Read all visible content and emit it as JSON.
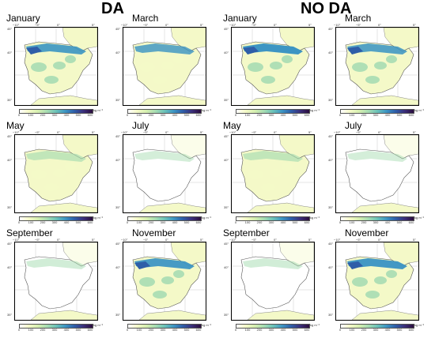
{
  "headers": {
    "left": "DA",
    "right": "NO DA"
  },
  "colorbar": {
    "ticks": [
      "0",
      "100",
      "200",
      "300",
      "400",
      "500",
      "600"
    ],
    "unit": "kg m⁻²"
  },
  "lat_labels": [
    "45°",
    "40°",
    "35°"
  ],
  "lon_labels": [
    "−10°",
    "−5°",
    "0°",
    "5°"
  ],
  "colors": {
    "low": "#f4f9c8",
    "mid": "#a7dcb2",
    "high": "#3d95c3",
    "max": "#2e5ea8"
  },
  "panels": [
    {
      "month": "January",
      "group": "DA",
      "intensity": 0.85
    },
    {
      "month": "March",
      "group": "DA",
      "intensity": 0.7
    },
    {
      "month": "January",
      "group": "NO DA",
      "intensity": 1.0
    },
    {
      "month": "March",
      "group": "NO DA",
      "intensity": 0.8
    },
    {
      "month": "May",
      "group": "DA",
      "intensity": 0.45
    },
    {
      "month": "July",
      "group": "DA",
      "intensity": 0.15
    },
    {
      "month": "May",
      "group": "NO DA",
      "intensity": 0.45
    },
    {
      "month": "July",
      "group": "NO DA",
      "intensity": 0.15
    },
    {
      "month": "September",
      "group": "DA",
      "intensity": 0.2
    },
    {
      "month": "November",
      "group": "DA",
      "intensity": 0.9
    },
    {
      "month": "September",
      "group": "NO DA",
      "intensity": 0.2
    },
    {
      "month": "November",
      "group": "NO DA",
      "intensity": 0.95
    }
  ]
}
